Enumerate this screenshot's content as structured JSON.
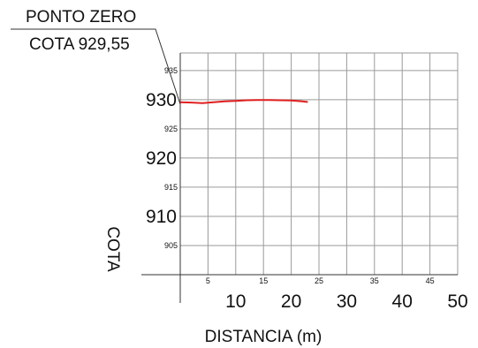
{
  "annotation": {
    "label": "PONTO ZERO",
    "value_label": "COTA 929,55"
  },
  "chart_data": {
    "type": "line",
    "title": "",
    "xlabel": "DISTANCIA (m)",
    "ylabel": "COTA",
    "xlim": [
      0,
      50
    ],
    "ylim": [
      900,
      938
    ],
    "grid": true,
    "x_major_ticks": [
      "10",
      "20",
      "30",
      "40",
      "50"
    ],
    "x_minor_ticks": [
      "5",
      "15",
      "25",
      "35",
      "45"
    ],
    "y_major_ticks": [
      "930",
      "920",
      "910"
    ],
    "y_minor_ticks": [
      "935",
      "925",
      "915",
      "905"
    ],
    "series": [
      {
        "color": "#e02020",
        "x": [
          0,
          2,
          4,
          6,
          8,
          10,
          12,
          14,
          16,
          18,
          20,
          22,
          23
        ],
        "y": [
          929.55,
          929.5,
          929.4,
          929.55,
          929.7,
          929.8,
          929.9,
          929.95,
          929.95,
          929.9,
          929.85,
          929.7,
          929.6
        ]
      }
    ]
  }
}
